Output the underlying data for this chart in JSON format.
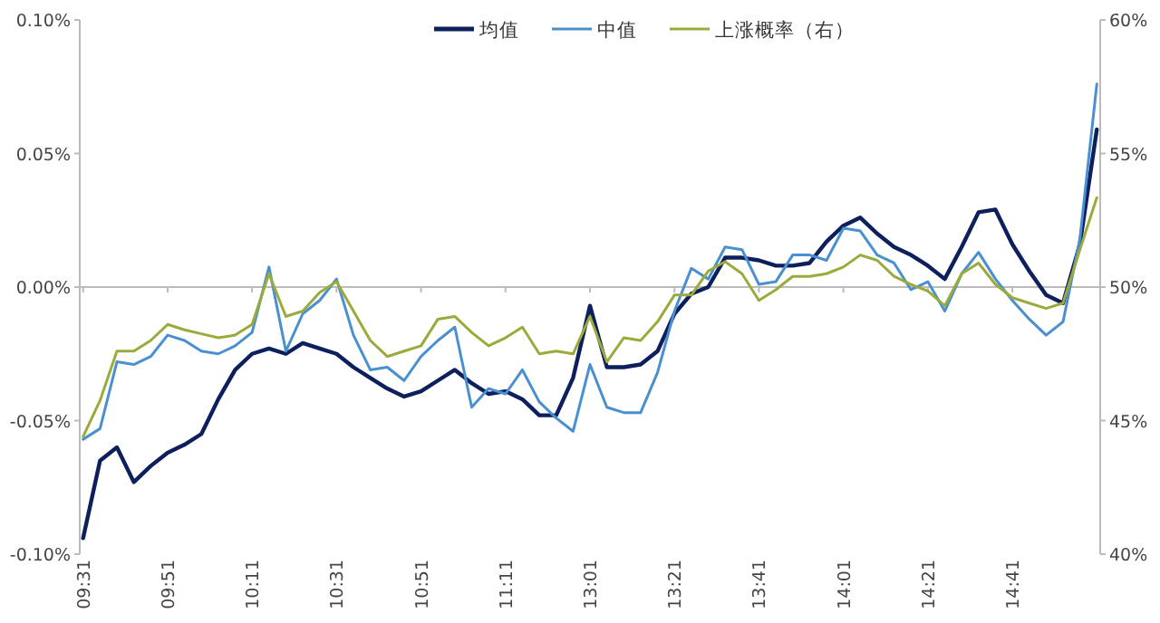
{
  "chart_data": {
    "type": "line",
    "legend": "top",
    "marker": "none",
    "line_style": "solid",
    "categories": [
      "09:31",
      null,
      null,
      null,
      null,
      "09:51",
      null,
      null,
      null,
      null,
      "10:11",
      null,
      null,
      null,
      null,
      "10:31",
      null,
      null,
      null,
      null,
      "10:51",
      null,
      null,
      null,
      null,
      "11:11",
      null,
      null,
      null,
      null,
      "13:01",
      null,
      null,
      null,
      null,
      "13:21",
      null,
      null,
      null,
      null,
      "13:41",
      null,
      null,
      null,
      null,
      "14:01",
      null,
      null,
      null,
      null,
      "14:21",
      null,
      null,
      null,
      null,
      "14:41",
      null,
      null,
      null,
      null,
      null
    ],
    "ylim": [
      -0.1,
      0.1
    ],
    "yticks": [
      {
        "value": -0.1,
        "label": "-0.10%"
      },
      {
        "value": -0.05,
        "label": "-0.05%"
      },
      {
        "value": 0,
        "label": "0.00%"
      },
      {
        "value": 0.05,
        "label": "0.05%"
      },
      {
        "value": 0.1,
        "label": "0.10%"
      }
    ],
    "y2lim": [
      40,
      60
    ],
    "y2ticks": [
      {
        "value": 40,
        "label": "40%"
      },
      {
        "value": 45,
        "label": "45%"
      },
      {
        "value": 50,
        "label": "50%"
      },
      {
        "value": 55,
        "label": "55%"
      },
      {
        "value": 60,
        "label": "60%"
      }
    ],
    "series": [
      {
        "name": "均值",
        "color": "#0d1f5c",
        "values": [
          -0.094,
          -0.065,
          -0.06,
          -0.073,
          -0.067,
          -0.062,
          -0.059,
          -0.055,
          -0.042,
          -0.031,
          -0.025,
          -0.023,
          -0.025,
          -0.021,
          -0.023,
          -0.025,
          -0.03,
          -0.034,
          -0.038,
          -0.041,
          -0.039,
          -0.035,
          -0.031,
          -0.036,
          -0.04,
          -0.039,
          -0.042,
          -0.048,
          -0.048,
          -0.034,
          -0.007,
          -0.03,
          -0.03,
          -0.029,
          -0.024,
          -0.01,
          -0.0025,
          0,
          0.011,
          0.011,
          0.01,
          0.008,
          0.008,
          0.009,
          0.017,
          0.023,
          0.026,
          0.02,
          0.015,
          0.012,
          0.008,
          0.003,
          0.015,
          0.028,
          0.029,
          0.016,
          0.006,
          -0.003,
          -0.006,
          0.016,
          0.059
        ]
      },
      {
        "name": "中值",
        "color": "#4a90d0",
        "values": [
          -0.057,
          -0.053,
          -0.028,
          -0.029,
          -0.026,
          -0.018,
          -0.02,
          -0.024,
          -0.025,
          -0.022,
          -0.017,
          0.0075,
          -0.024,
          -0.01,
          -0.005,
          0.003,
          -0.018,
          -0.031,
          -0.03,
          -0.035,
          -0.026,
          -0.02,
          -0.015,
          -0.045,
          -0.038,
          -0.04,
          -0.031,
          -0.043,
          -0.049,
          -0.054,
          -0.029,
          -0.045,
          -0.047,
          -0.047,
          -0.032,
          -0.009,
          0.007,
          0.003,
          0.015,
          0.014,
          0.001,
          0.002,
          0.012,
          0.012,
          0.01,
          0.022,
          0.021,
          0.012,
          0.009,
          -0.001,
          0.002,
          -0.009,
          0.005,
          0.013,
          0.003,
          -0.005,
          -0.012,
          -0.018,
          -0.013,
          0.018,
          0.076
        ]
      },
      {
        "name": "上涨概率（右）",
        "color": "#9aab3c",
        "axis": "y2",
        "values": [
          44.4,
          45.75,
          47.6,
          47.6,
          48.0,
          48.6,
          48.4,
          48.25,
          48.1,
          48.2,
          48.6,
          50.5,
          48.9,
          49.1,
          49.8,
          50.2,
          49.1,
          48.0,
          47.4,
          47.6,
          47.8,
          48.8,
          48.9,
          48.3,
          47.8,
          48.1,
          48.5,
          47.5,
          47.6,
          47.5,
          48.9,
          47.2,
          48.1,
          48.0,
          48.7,
          49.7,
          49.7,
          50.6,
          50.95,
          50.5,
          49.5,
          49.9,
          50.4,
          50.4,
          50.5,
          50.75,
          51.2,
          51.0,
          50.4,
          50.1,
          49.85,
          49.3,
          50.5,
          50.9,
          50.1,
          49.6,
          49.4,
          49.2,
          49.4,
          51.4,
          53.35
        ]
      }
    ]
  }
}
